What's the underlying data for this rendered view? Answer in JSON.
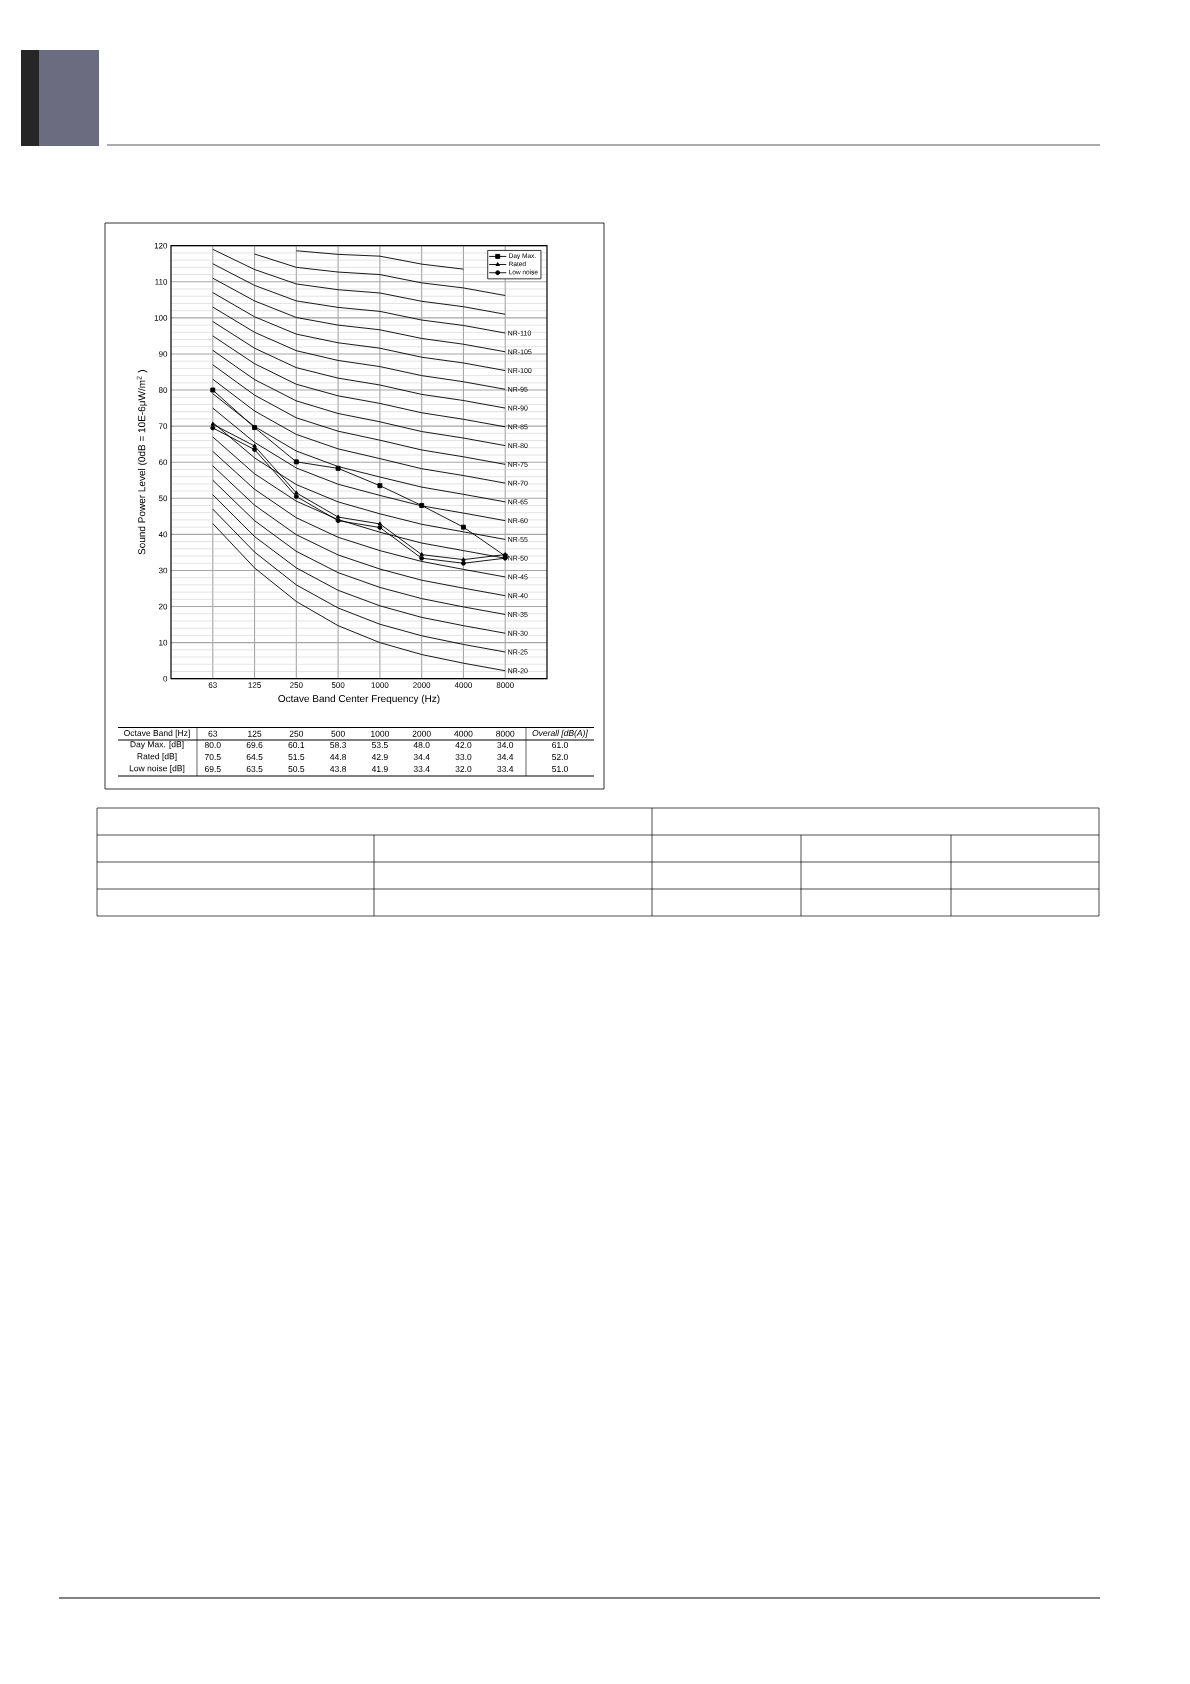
{
  "chart_data": {
    "type": "line",
    "xlabel": "Octave Band Center Frequency (Hz)",
    "ylabel": "Sound Power Level (0dB  = 10E-6μW/m$^{2}$ )",
    "categories": [
      "63",
      "125",
      "250",
      "500",
      "1000",
      "2000",
      "4000",
      "8000"
    ],
    "ylim": [
      0,
      120
    ],
    "yticks": [
      0,
      10,
      20,
      30,
      40,
      50,
      60,
      70,
      80,
      90,
      100,
      110,
      120
    ],
    "grid": true,
    "legend": "top right",
    "series": [
      {
        "name": "NR-20",
        "color": "#000000",
        "marker": "none",
        "values": [
          43,
          30.7,
          21.4,
          14.7,
          10.0,
          6.7,
          4.3,
          2.2
        ]
      },
      {
        "name": "NR-25",
        "color": "#000000",
        "marker": "none",
        "values": [
          47,
          35.1,
          26.0,
          19.6,
          15.1,
          11.9,
          9.5,
          7.4
        ]
      },
      {
        "name": "NR-30",
        "color": "#000000",
        "marker": "none",
        "values": [
          51,
          39.4,
          30.7,
          24.5,
          20.2,
          17.0,
          14.7,
          12.6
        ]
      },
      {
        "name": "NR-35",
        "color": "#000000",
        "marker": "none",
        "values": [
          55,
          43.8,
          35.3,
          29.4,
          25.3,
          22.2,
          19.9,
          17.8
        ]
      },
      {
        "name": "NR-40",
        "color": "#000000",
        "marker": "none",
        "values": [
          59,
          48.1,
          39.9,
          34.3,
          30.4,
          27.3,
          25.1,
          23.0
        ]
      },
      {
        "name": "NR-45",
        "color": "#000000",
        "marker": "none",
        "values": [
          63,
          52.5,
          44.6,
          39.2,
          35.5,
          32.5,
          30.3,
          28.2
        ]
      },
      {
        "name": "NR-50",
        "color": "#000000",
        "marker": "none",
        "values": [
          67,
          56.8,
          49.2,
          44.1,
          40.6,
          37.6,
          35.5,
          33.4
        ]
      },
      {
        "name": "NR-55",
        "color": "#000000",
        "marker": "none",
        "values": [
          71,
          61.2,
          53.8,
          49.0,
          45.7,
          42.8,
          40.7,
          38.6
        ]
      },
      {
        "name": "NR-60",
        "color": "#000000",
        "marker": "none",
        "values": [
          75,
          65.5,
          58.4,
          53.9,
          50.8,
          47.9,
          45.9,
          43.8
        ]
      },
      {
        "name": "NR-65",
        "color": "#000000",
        "marker": "none",
        "values": [
          79,
          69.9,
          63.1,
          58.8,
          55.9,
          53.1,
          51.1,
          49.0
        ]
      },
      {
        "name": "NR-70",
        "color": "#000000",
        "marker": "none",
        "values": [
          83,
          74.2,
          67.7,
          63.7,
          61.0,
          58.2,
          56.3,
          54.2
        ]
      },
      {
        "name": "NR-75",
        "color": "#000000",
        "marker": "none",
        "values": [
          87,
          78.6,
          72.3,
          68.6,
          66.1,
          63.4,
          61.5,
          59.4
        ]
      },
      {
        "name": "NR-80",
        "color": "#000000",
        "marker": "none",
        "values": [
          91,
          82.9,
          77.0,
          73.5,
          71.2,
          68.5,
          66.7,
          64.6
        ]
      },
      {
        "name": "NR-85",
        "color": "#000000",
        "marker": "none",
        "values": [
          95,
          87.3,
          81.6,
          78.4,
          76.3,
          73.7,
          71.9,
          69.8
        ]
      },
      {
        "name": "NR-90",
        "color": "#000000",
        "marker": "none",
        "values": [
          99,
          91.6,
          86.2,
          83.3,
          81.4,
          78.8,
          77.1,
          75.0
        ]
      },
      {
        "name": "NR-95",
        "color": "#000000",
        "marker": "none",
        "values": [
          103,
          96.0,
          90.9,
          88.2,
          86.5,
          84.0,
          82.3,
          80.2
        ]
      },
      {
        "name": "NR-100",
        "color": "#000000",
        "marker": "none",
        "values": [
          107,
          100.3,
          95.5,
          93.1,
          91.6,
          89.1,
          87.5,
          85.4
        ]
      },
      {
        "name": "NR-105",
        "color": "#000000",
        "marker": "none",
        "values": [
          111,
          104.7,
          100.1,
          98.0,
          96.7,
          94.3,
          92.7,
          90.6
        ]
      },
      {
        "name": "NR-110",
        "color": "#000000",
        "marker": "none",
        "values": [
          115,
          109.0,
          104.7,
          102.9,
          101.8,
          99.4,
          97.9,
          95.8
        ]
      },
      {
        "color": "#000000",
        "marker": "none",
        "values": [
          119,
          113.4,
          109.4,
          107.8,
          106.9,
          104.6,
          103.1,
          101.0
        ]
      },
      {
        "color": "#000000",
        "marker": "none",
        "values": [
          null,
          117.7,
          114.0,
          112.7,
          112.0,
          109.7,
          108.3,
          106.2
        ]
      },
      {
        "color": "#000000",
        "marker": "none",
        "values": [
          null,
          null,
          118.6,
          117.6,
          117.1,
          114.9,
          113.5,
          null
        ]
      },
      {
        "name": "Day Max.",
        "color": "#000000",
        "marker": "square",
        "values": [
          80.0,
          69.6,
          60.1,
          58.3,
          53.5,
          48.0,
          42.0,
          34.0
        ],
        "value_labels": [
          "80.0",
          "69.6",
          "60.1",
          "58.3",
          "53.5",
          "48.0",
          "42.0",
          "34.0"
        ]
      },
      {
        "name": "Rated",
        "color": "#000000",
        "marker": "triangle",
        "values": [
          70.5,
          64.5,
          51.5,
          44.8,
          42.9,
          34.4,
          33.0,
          34.4
        ],
        "value_labels": [
          "70.5",
          "64.5",
          "51.5",
          "44.8",
          "42.9",
          "34.4",
          "33.0",
          "34.4"
        ]
      },
      {
        "name": "Low noise",
        "color": "#000000",
        "marker": "circle",
        "values": [
          69.5,
          63.5,
          50.5,
          43.8,
          41.9,
          33.4,
          32.0,
          33.4
        ],
        "value_labels": [
          "69.5",
          "63.5",
          "50.5",
          "43.8",
          "41.9",
          "33.4",
          "32.0",
          "33.4"
        ]
      }
    ],
    "annotations": [
      "Octave Band [Hz]",
      "*Overall [dB(A)]*",
      "Day Max. [dB]",
      "Rated [dB]",
      "Low noise [dB]",
      "61.0",
      "52.0",
      "51.0"
    ]
  }
}
